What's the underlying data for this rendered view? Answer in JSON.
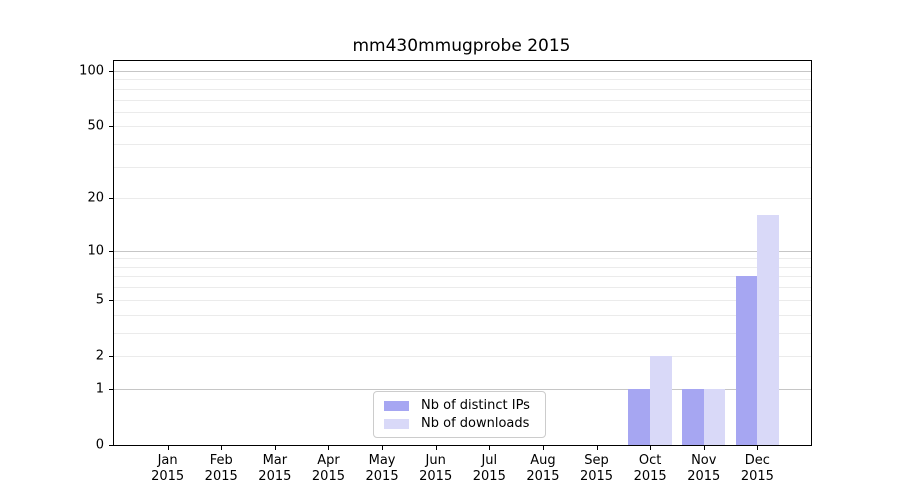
{
  "title": "mm430mmugprobe 2015",
  "chart_data": {
    "type": "bar",
    "title": "mm430mmugprobe 2015",
    "categories": [
      "Jan",
      "Feb",
      "Mar",
      "Apr",
      "May",
      "Jun",
      "Jul",
      "Aug",
      "Sep",
      "Oct",
      "Nov",
      "Dec"
    ],
    "x_tick_second_line": "2015",
    "series": [
      {
        "name": "Nb of distinct IPs",
        "color": "#a6a6f2",
        "values": [
          0,
          0,
          0,
          0,
          0,
          0,
          0,
          0,
          0,
          1,
          1,
          7
        ]
      },
      {
        "name": "Nb of downloads",
        "color": "#d9d9f8",
        "values": [
          0,
          0,
          0,
          0,
          0,
          0,
          0,
          0,
          0,
          2,
          1,
          16
        ]
      }
    ],
    "y_scale": "log10(1+y)",
    "y_ticks": [
      0,
      1,
      2,
      5,
      10,
      20,
      50,
      100
    ],
    "y_major_gridlines": [
      1,
      10,
      100
    ],
    "y_minor_gridlines": [
      2,
      3,
      4,
      5,
      6,
      7,
      8,
      9,
      20,
      30,
      40,
      50,
      60,
      70,
      80,
      90
    ],
    "ylim": [
      0,
      113
    ],
    "grid": "on",
    "legend_position": "lower center"
  },
  "colors": {
    "background": "#ffffff",
    "bar_distinct_ips": "#a6a6f2",
    "bar_downloads": "#d9d9f8",
    "grid_major": "#c6c6c6",
    "grid_minor": "#ebebeb",
    "spine": "#000000",
    "legend_border": "#cccccc"
  }
}
